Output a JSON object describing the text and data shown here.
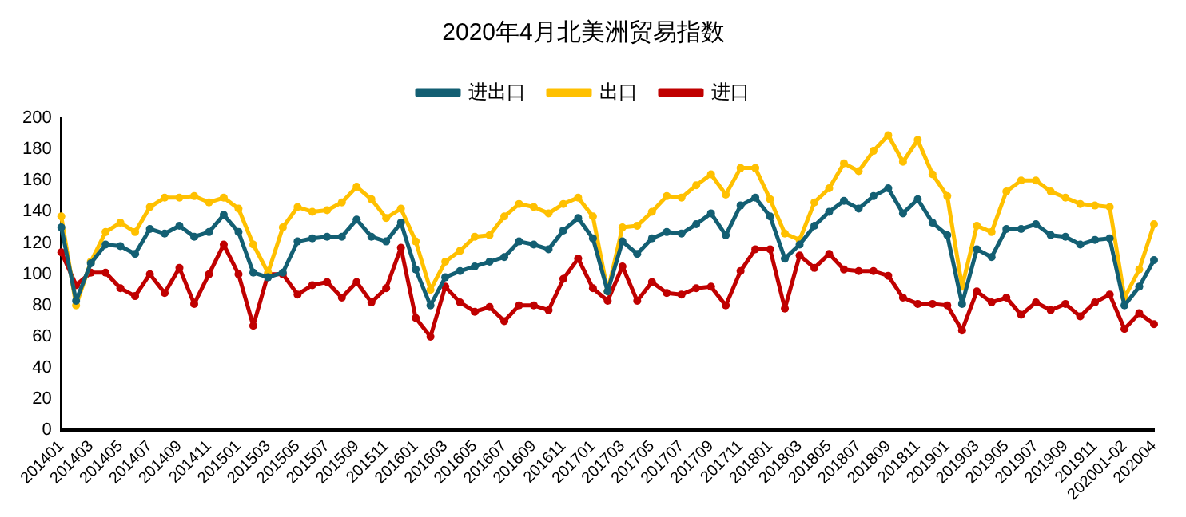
{
  "chart_data": {
    "type": "line",
    "title": "2020年4月北美洲贸易指数",
    "categories": [
      "201401",
      null,
      "201403",
      null,
      "201405",
      null,
      "201407",
      null,
      "201409",
      null,
      "201411",
      null,
      "201501",
      null,
      "201503",
      null,
      "201505",
      null,
      "201507",
      null,
      "201509",
      null,
      "201511",
      null,
      "201601",
      null,
      "201603",
      null,
      "201605",
      null,
      "201607",
      null,
      "201609",
      null,
      "201611",
      null,
      "201701",
      null,
      "201703",
      null,
      "201705",
      null,
      "201707",
      null,
      "201709",
      null,
      "201711",
      null,
      "201801",
      null,
      "201803",
      null,
      "201805",
      null,
      "201807",
      null,
      "201809",
      null,
      "201811",
      null,
      "201901",
      null,
      "201903",
      null,
      "201905",
      null,
      "201907",
      null,
      "201909",
      null,
      "201911",
      null,
      "202001-02",
      null,
      "202004"
    ],
    "series": [
      {
        "name": "进出口",
        "color": "#135f73",
        "values": [
          130,
          83,
          107,
          119,
          118,
          113,
          129,
          126,
          131,
          124,
          127,
          138,
          127,
          101,
          98,
          101,
          121,
          123,
          124,
          124,
          135,
          124,
          121,
          133,
          103,
          80,
          98,
          102,
          105,
          108,
          111,
          121,
          119,
          116,
          128,
          136,
          123,
          89,
          121,
          113,
          123,
          127,
          126,
          132,
          139,
          125,
          144,
          149,
          137,
          110,
          119,
          131,
          140,
          147,
          142,
          150,
          155,
          139,
          148,
          133,
          125,
          81,
          116,
          111,
          129,
          129,
          132,
          125,
          124,
          119,
          122,
          123,
          80,
          92,
          109
        ]
      },
      {
        "name": "出口",
        "color": "#ffc000",
        "values": [
          137,
          80,
          108,
          127,
          133,
          127,
          143,
          149,
          149,
          150,
          146,
          149,
          142,
          119,
          101,
          130,
          143,
          140,
          141,
          146,
          156,
          148,
          136,
          142,
          121,
          90,
          108,
          115,
          124,
          125,
          137,
          145,
          143,
          139,
          145,
          149,
          137,
          89,
          130,
          131,
          140,
          150,
          149,
          157,
          164,
          151,
          168,
          168,
          148,
          126,
          122,
          146,
          155,
          171,
          166,
          179,
          189,
          172,
          186,
          164,
          150,
          92,
          131,
          127,
          153,
          160,
          160,
          153,
          149,
          145,
          144,
          143,
          85,
          103,
          132
        ]
      },
      {
        "name": "进口",
        "color": "#c00000",
        "values": [
          114,
          93,
          101,
          101,
          91,
          86,
          100,
          88,
          104,
          81,
          100,
          119,
          100,
          67,
          100,
          100,
          87,
          93,
          95,
          85,
          95,
          82,
          91,
          117,
          72,
          60,
          92,
          82,
          76,
          79,
          70,
          80,
          80,
          77,
          97,
          110,
          91,
          83,
          105,
          83,
          95,
          88,
          87,
          91,
          92,
          80,
          102,
          116,
          116,
          78,
          112,
          104,
          113,
          103,
          102,
          102,
          99,
          85,
          81,
          81,
          80,
          64,
          89,
          82,
          85,
          74,
          82,
          77,
          81,
          73,
          82,
          87,
          65,
          75,
          68
        ]
      }
    ],
    "ylim": [
      0,
      200
    ],
    "yticks": [
      0,
      20,
      40,
      60,
      80,
      100,
      120,
      140,
      160,
      180,
      200
    ],
    "grid": false,
    "legend": "top",
    "marker": "circle"
  }
}
